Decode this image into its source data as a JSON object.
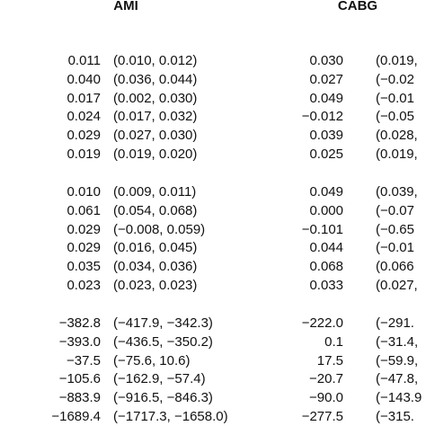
{
  "header": [
    "AMI",
    "CABG"
  ],
  "groups": [
    [
      [
        "0.011",
        "(0.010, 0.012)",
        "0.030",
        "(0.019,"
      ],
      [
        "0.040",
        "(0.036, 0.044)",
        "0.027",
        "(−0.02"
      ],
      [
        "0.017",
        "(0.002, 0.030)",
        "0.049",
        "(−0.01"
      ],
      [
        "0.024",
        "(0.017, 0.032)",
        "−0.012",
        "(−0.05"
      ],
      [
        "0.029",
        "(0.027, 0.030)",
        "0.039",
        "(0.028,"
      ],
      [
        "0.019",
        "(0.019, 0.020)",
        "0.025",
        "(0.019,"
      ]
    ],
    [
      [
        "0.010",
        "(0.009, 0.011)",
        "0.049",
        "(0.039,"
      ],
      [
        "0.061",
        "(0.054, 0.068)",
        "0.000",
        "(−0.07"
      ],
      [
        "0.029",
        "(−0.008, 0.059)",
        "−0.101",
        "(−0.65"
      ],
      [
        "0.029",
        "(0.016, 0.045)",
        "0.044",
        "(−0.01"
      ],
      [
        "0.035",
        "(0.034, 0.036)",
        "0.068",
        "(0.066"
      ],
      [
        "0.023",
        "(0.023, 0.023)",
        "0.033",
        "(0.027,"
      ]
    ],
    [
      [
        "−382.8",
        "(−417.9, −342.3)",
        "−222.0",
        "(−291."
      ],
      [
        "−393.0",
        "(−436.5, −350.2)",
        "0.1",
        "(−31.4,"
      ],
      [
        "−37.5",
        "(−75.6, 10.6)",
        "17.5",
        "(−59.9,"
      ],
      [
        "−105.6",
        "(−162.9, −57.4)",
        "−20.7",
        "(−47.8,"
      ],
      [
        "−883.9",
        "(−916.5, −846.3)",
        "−90.0",
        "(−143.9"
      ],
      [
        "−1689.4",
        "(−1717.3, −1658.0)",
        "−277.5",
        "(−315."
      ]
    ]
  ]
}
